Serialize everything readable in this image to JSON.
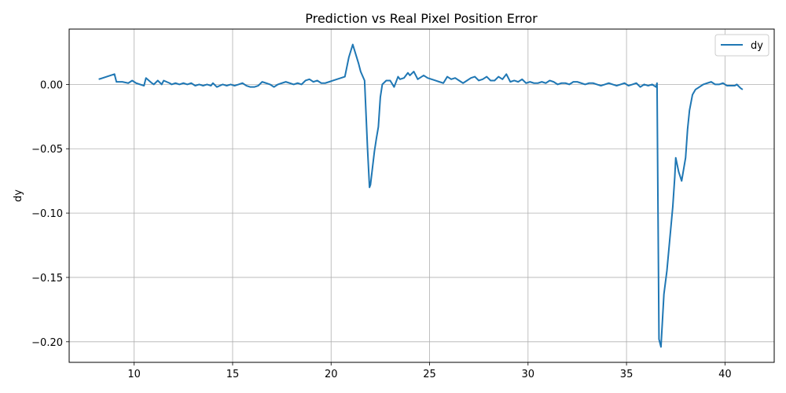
{
  "chart_data": {
    "type": "line",
    "title": "Prediction vs Real Pixel Position Error",
    "xlabel": "",
    "ylabel": "dy",
    "xlim": [
      6.7,
      42.5
    ],
    "ylim": [
      -0.216,
      0.043
    ],
    "xticks": [
      10,
      15,
      20,
      25,
      30,
      35,
      40
    ],
    "xtick_labels": [
      "10",
      "15",
      "20",
      "25",
      "30",
      "35",
      "40"
    ],
    "yticks": [
      0.0,
      -0.05,
      -0.1,
      -0.15,
      -0.2
    ],
    "ytick_labels": [
      "0.00",
      "−0.05",
      "−0.10",
      "−0.15",
      "−0.20"
    ],
    "grid": true,
    "legend_position": "top-right",
    "series": [
      {
        "name": "dy",
        "color": "#1f77b4",
        "x": [
          8.2,
          9.0,
          9.1,
          9.4,
          9.7,
          9.9,
          10.1,
          10.5,
          10.6,
          10.9,
          11.0,
          11.2,
          11.4,
          11.5,
          11.8,
          11.9,
          12.1,
          12.3,
          12.5,
          12.7,
          12.9,
          13.1,
          13.3,
          13.5,
          13.7,
          13.9,
          14.0,
          14.2,
          14.5,
          14.7,
          14.9,
          15.1,
          15.3,
          15.5,
          15.7,
          15.9,
          16.1,
          16.3,
          16.5,
          16.7,
          16.9,
          17.1,
          17.3,
          17.5,
          17.7,
          17.9,
          18.1,
          18.3,
          18.5,
          18.7,
          18.9,
          19.1,
          19.3,
          19.5,
          19.7,
          19.9,
          20.1,
          20.3,
          20.5,
          20.7,
          20.9,
          21.1,
          21.2,
          21.4,
          21.5,
          21.7,
          21.85,
          21.95,
          22.0,
          22.1,
          22.2,
          22.3,
          22.4,
          22.5,
          22.6,
          22.8,
          23.0,
          23.2,
          23.4,
          23.5,
          23.7,
          23.9,
          24.0,
          24.2,
          24.4,
          24.5,
          24.7,
          24.9,
          25.1,
          25.3,
          25.5,
          25.7,
          25.9,
          26.1,
          26.3,
          26.5,
          26.7,
          26.9,
          27.1,
          27.3,
          27.5,
          27.7,
          27.9,
          28.1,
          28.3,
          28.5,
          28.7,
          28.9,
          29.1,
          29.3,
          29.5,
          29.7,
          29.9,
          30.1,
          30.3,
          30.5,
          30.7,
          30.9,
          31.1,
          31.3,
          31.5,
          31.7,
          31.9,
          32.1,
          32.3,
          32.5,
          32.7,
          32.9,
          33.1,
          33.3,
          33.5,
          33.7,
          33.9,
          34.1,
          34.3,
          34.5,
          34.7,
          34.9,
          35.1,
          35.3,
          35.5,
          35.7,
          35.9,
          36.1,
          36.3,
          36.5,
          36.55,
          36.65,
          36.75,
          36.9,
          37.05,
          37.2,
          37.35,
          37.45,
          37.5,
          37.65,
          37.8,
          38.0,
          38.1,
          38.2,
          38.35,
          38.5,
          38.7,
          38.9,
          39.1,
          39.3,
          39.5,
          39.7,
          39.9,
          40.1,
          40.3,
          40.5,
          40.6,
          40.8,
          40.9
        ],
        "values": [
          0.004,
          0.008,
          0.002,
          0.002,
          0.001,
          0.003,
          0.001,
          -0.001,
          0.005,
          0.001,
          0.0,
          0.003,
          0.0,
          0.003,
          0.001,
          0.0,
          0.001,
          0.0,
          0.001,
          0.0,
          0.001,
          -0.001,
          0.0,
          -0.001,
          0.0,
          -0.001,
          0.001,
          -0.002,
          0.0,
          -0.001,
          0.0,
          -0.001,
          0.0,
          0.001,
          -0.001,
          -0.002,
          -0.002,
          -0.001,
          0.002,
          0.001,
          0.0,
          -0.002,
          0.0,
          0.001,
          0.002,
          0.001,
          0.0,
          0.001,
          0.0,
          0.003,
          0.004,
          0.002,
          0.003,
          0.001,
          0.001,
          0.002,
          0.003,
          0.004,
          0.005,
          0.006,
          0.021,
          0.031,
          0.026,
          0.016,
          0.01,
          0.003,
          -0.05,
          -0.08,
          -0.078,
          -0.065,
          -0.052,
          -0.042,
          -0.033,
          -0.01,
          0.0,
          0.003,
          0.003,
          -0.002,
          0.006,
          0.004,
          0.005,
          0.009,
          0.007,
          0.01,
          0.004,
          0.005,
          0.007,
          0.005,
          0.004,
          0.003,
          0.002,
          0.001,
          0.006,
          0.004,
          0.005,
          0.003,
          0.001,
          0.003,
          0.005,
          0.006,
          0.003,
          0.004,
          0.006,
          0.003,
          0.003,
          0.006,
          0.004,
          0.008,
          0.002,
          0.003,
          0.002,
          0.004,
          0.001,
          0.002,
          0.001,
          0.001,
          0.002,
          0.001,
          0.003,
          0.002,
          0.0,
          0.001,
          0.001,
          0.0,
          0.002,
          0.002,
          0.001,
          0.0,
          0.001,
          0.001,
          0.0,
          -0.001,
          0.0,
          0.001,
          0.0,
          -0.001,
          0.0,
          0.001,
          -0.001,
          0.0,
          0.001,
          -0.002,
          0.0,
          -0.001,
          0.0,
          -0.002,
          0.001,
          -0.198,
          -0.204,
          -0.163,
          -0.145,
          -0.12,
          -0.095,
          -0.072,
          -0.057,
          -0.068,
          -0.075,
          -0.057,
          -0.035,
          -0.02,
          -0.008,
          -0.004,
          -0.002,
          0.0,
          0.001,
          0.002,
          0.0,
          0.0,
          0.001,
          -0.001,
          -0.001,
          -0.001,
          0.0,
          -0.003,
          -0.004
        ]
      }
    ]
  }
}
